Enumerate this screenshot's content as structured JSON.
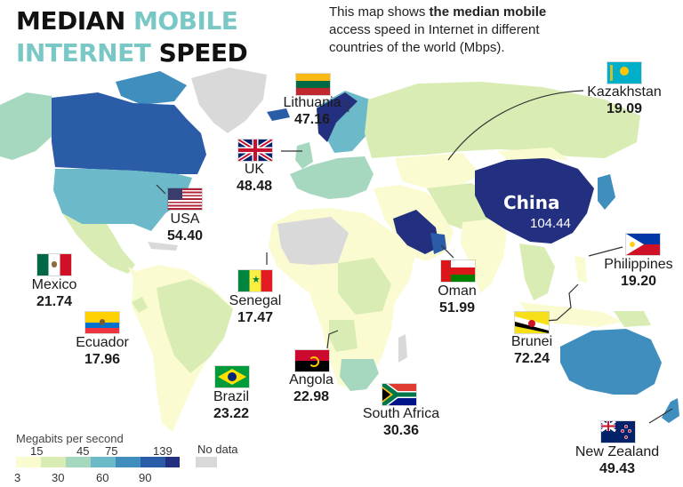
{
  "title": {
    "line1_a": "MEDIAN",
    "line1_b": "MOBILE",
    "line2_a": "INTERNET",
    "line2_b": "SPEED"
  },
  "description": {
    "pre": "This map shows ",
    "bold": "the median mobile",
    "post": " access speed in Internet in different countries of the world (Mbps)."
  },
  "countries": [
    {
      "key": "lithuania",
      "name": "Lithuania",
      "value": "47.16"
    },
    {
      "key": "uk",
      "name": "UK",
      "value": "48.48"
    },
    {
      "key": "usa",
      "name": "USA",
      "value": "54.40"
    },
    {
      "key": "mexico",
      "name": "Mexico",
      "value": "21.74"
    },
    {
      "key": "ecuador",
      "name": "Ecuador",
      "value": "17.96"
    },
    {
      "key": "senegal",
      "name": "Senegal",
      "value": "17.47"
    },
    {
      "key": "brazil",
      "name": "Brazil",
      "value": "23.22"
    },
    {
      "key": "angola",
      "name": "Angola",
      "value": "22.98"
    },
    {
      "key": "south_africa",
      "name": "South Africa",
      "value": "30.36"
    },
    {
      "key": "oman",
      "name": "Oman",
      "value": "51.99"
    },
    {
      "key": "kazakhstan",
      "name": "Kazakhstan",
      "value": "19.09"
    },
    {
      "key": "philippines",
      "name": "Philippines",
      "value": "19.20"
    },
    {
      "key": "brunei",
      "name": "Brunei",
      "value": "72.24"
    },
    {
      "key": "new_zealand",
      "name": "New Zealand",
      "value": "49.43"
    }
  ],
  "china": {
    "name": "China",
    "value": "104.44"
  },
  "legend": {
    "title": "Megabits per second",
    "ticks_top": [
      "15",
      "45",
      "75",
      "139"
    ],
    "ticks_bottom": [
      "3",
      "30",
      "60",
      "90"
    ],
    "colors": [
      "#fbfbd2",
      "#d9ecb4",
      "#a6d8c0",
      "#6cbac9",
      "#3f8ebe",
      "#2b5ca8",
      "#23307f"
    ],
    "no_data_label": "No data",
    "no_data_color": "#d9d9d9"
  }
}
